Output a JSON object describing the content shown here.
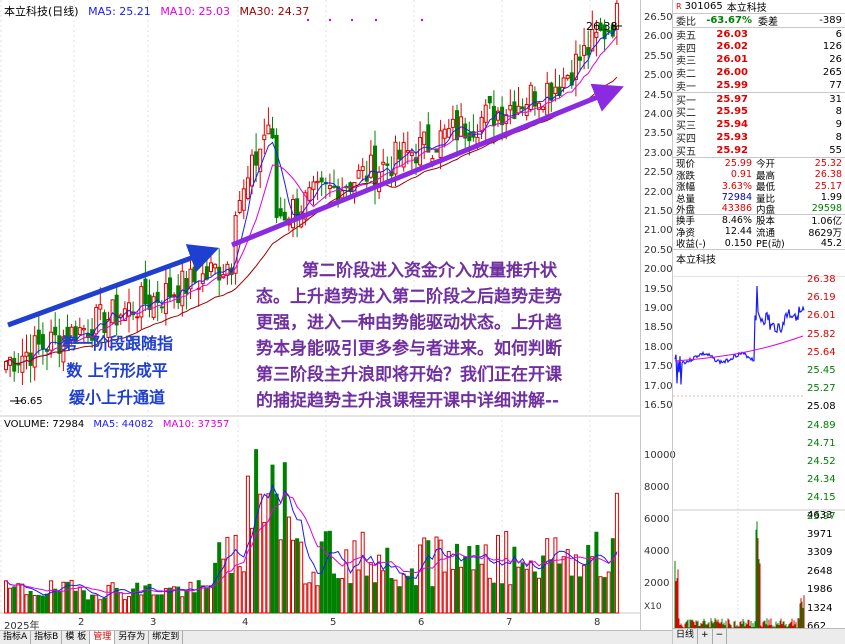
{
  "legend": {
    "title": "本立科技(日线)",
    "ma5": "MA5: 25.21",
    "ma10": "MA10: 25.03",
    "ma30": "MA30: 24.37"
  },
  "vol_legend": {
    "title": "VOLUME: 72984",
    "ma5": "MA5: 44082",
    "ma10": "MA10: 37357"
  },
  "price_labels": {
    "high": "26.38",
    "low": "16.65"
  },
  "annotations": {
    "stage1": [
      "第一阶段跟随指",
      "数 上行形成平",
      "缓小上升通道"
    ],
    "stage2": [
      "第二阶段进入资金介入放量推升状",
      "态。上升趋势进入第二阶段之后趋势走势",
      "更强，进入一种由势能驱动状态。上升趋",
      "势本身能吸引更多参与者进来。如何判断",
      "第三阶段主升浪即将开始？我们正在开课",
      "的捕捉趋势主升浪课程开课中详细讲解--"
    ]
  },
  "x_axis": [
    {
      "label": "2025年"
    },
    {
      "label": "2"
    },
    {
      "label": "3"
    },
    {
      "label": "4"
    },
    {
      "label": "5"
    },
    {
      "label": "6"
    },
    {
      "label": "7"
    },
    {
      "label": "8"
    }
  ],
  "price_axis": [
    "26.50",
    "26.00",
    "25.50",
    "25.00",
    "24.50",
    "24.00",
    "23.50",
    "23.00",
    "22.50",
    "22.00",
    "21.50",
    "21.00",
    "20.50",
    "20.00",
    "19.50",
    "19.00",
    "18.50",
    "18.00",
    "17.50",
    "17.00",
    "16.50"
  ],
  "volume_axis": [
    "10000",
    "8000",
    "6000",
    "4000",
    "2000"
  ],
  "volume_unit": "X10",
  "colors": {
    "up": "#e00000",
    "down": "#008000",
    "ma5": "#1a1aff",
    "ma10": "#e000e0",
    "ma30": "#a00000",
    "arrow_blue": "#1f3fd0",
    "arrow_purple": "#8a2be2"
  },
  "panel": {
    "code": "301065",
    "name": "本立科技",
    "ratio_label": "委比",
    "ratio": "-63.67%",
    "diff_label": "委差",
    "diff": "-389",
    "asks": [
      {
        "label": "卖五",
        "price": "26.03",
        "vol": "6"
      },
      {
        "label": "卖四",
        "price": "26.02",
        "vol": "126"
      },
      {
        "label": "卖三",
        "price": "26.01",
        "vol": "26"
      },
      {
        "label": "卖二",
        "price": "26.00",
        "vol": "265"
      },
      {
        "label": "卖一",
        "price": "25.99",
        "vol": "77"
      }
    ],
    "bids": [
      {
        "label": "买一",
        "price": "25.97",
        "vol": "31"
      },
      {
        "label": "买二",
        "price": "25.95",
        "vol": "8"
      },
      {
        "label": "买三",
        "price": "25.94",
        "vol": "9"
      },
      {
        "label": "买四",
        "price": "25.93",
        "vol": "8"
      },
      {
        "label": "买五",
        "price": "25.92",
        "vol": "55"
      }
    ],
    "stats": [
      {
        "k1": "现价",
        "v1": "25.99",
        "k2": "今开",
        "v2": "25.32"
      },
      {
        "k1": "涨跌",
        "v1": "0.91",
        "k2": "最高",
        "v2": "26.38"
      },
      {
        "k1": "涨幅",
        "v1": "3.63%",
        "k2": "最低",
        "v2": "25.17"
      },
      {
        "k1": "总量",
        "v1": "72984",
        "k2": "量比",
        "v2": "1.99"
      },
      {
        "k1": "外盘",
        "v1": "43386",
        "k2": "内盘",
        "v2": "29598"
      },
      {
        "k1": "换手",
        "v1": "8.46%",
        "k2": "股本",
        "v2": "1.06亿"
      },
      {
        "k1": "净资",
        "v1": "12.44",
        "k2": "流通",
        "v2": "8629万"
      },
      {
        "k1": "收益(-)",
        "v1": "0.150",
        "k2": "PE(动)",
        "v2": "45.2"
      }
    ],
    "mini_title": "本立科技",
    "mini_price_ticks": [
      "26.38",
      "26.19",
      "26.01",
      "25.82",
      "25.64",
      "25.45",
      "25.27",
      "25.08",
      "24.89",
      "24.71",
      "24.52",
      "24.34",
      "24.15",
      "23.97"
    ],
    "mini_vol_ticks": [
      "4633",
      "3971",
      "3309",
      "2648",
      "1986",
      "1324",
      "662"
    ],
    "bottom_tabs": [
      "日线",
      "+",
      "−"
    ]
  },
  "tabs": [
    "指标A",
    "指标B",
    "模 板",
    "管理",
    "另存为",
    "绑定到"
  ]
}
